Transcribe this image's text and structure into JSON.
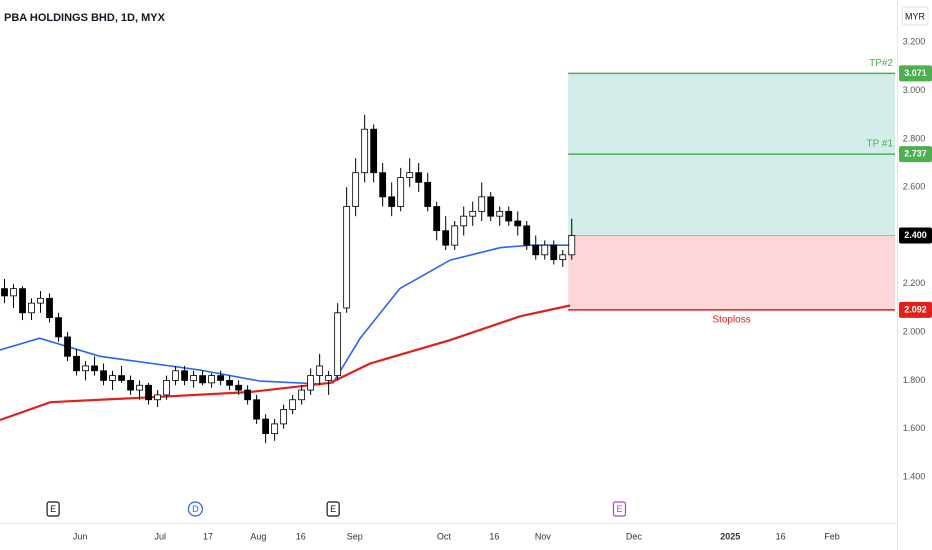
{
  "chart_data": {
    "type": "candlestick",
    "title": "PBA HOLDINGS BHD, 1D, MYX",
    "currency": "MYR",
    "x": [
      0.5,
      1.5,
      2.5,
      3.5,
      4.5,
      5.5,
      6.5,
      7.5,
      8.5,
      9.5,
      10.5,
      11.5,
      12.5,
      13.5,
      14.5,
      15.5,
      16.5,
      17.5,
      18.5,
      19.5,
      20.5,
      21.5,
      22.5,
      23.5,
      24.5,
      25.5,
      26.5,
      27.5,
      28.5,
      29.5,
      30.5,
      31.5,
      32.5,
      33.5,
      34.5,
      35.5,
      36.5,
      37.5,
      38.5,
      39.5,
      40.5,
      41.5,
      42.5,
      43.5,
      44.5,
      45.5,
      46.5,
      47.5,
      48.5,
      49.5,
      50.5,
      51.5,
      52.5,
      53.5,
      54.5,
      55.5,
      56.5,
      57.5,
      58.5,
      59.5,
      60.5,
      61.5,
      62.5,
      63.5
    ],
    "open": [
      2.18,
      2.15,
      2.18,
      2.08,
      2.12,
      2.14,
      2.06,
      1.98,
      1.9,
      1.84,
      1.86,
      1.84,
      1.8,
      1.82,
      1.8,
      1.76,
      1.78,
      1.72,
      1.74,
      1.8,
      1.84,
      1.8,
      1.82,
      1.79,
      1.82,
      1.8,
      1.78,
      1.76,
      1.72,
      1.64,
      1.58,
      1.62,
      1.68,
      1.72,
      1.76,
      1.82,
      1.8,
      1.82,
      2.1,
      2.52,
      2.66,
      2.84,
      2.66,
      2.56,
      2.52,
      2.64,
      2.66,
      2.62,
      2.52,
      2.42,
      2.36,
      2.44,
      2.48,
      2.5,
      2.56,
      2.48,
      2.5,
      2.46,
      2.44,
      2.36,
      2.32,
      2.36,
      2.3,
      2.32
    ],
    "high": [
      2.22,
      2.2,
      2.19,
      2.14,
      2.17,
      2.16,
      2.08,
      2.0,
      1.93,
      1.88,
      1.9,
      1.87,
      1.84,
      1.86,
      1.82,
      1.8,
      1.79,
      1.76,
      1.82,
      1.86,
      1.86,
      1.84,
      1.84,
      1.83,
      1.84,
      1.82,
      1.8,
      1.78,
      1.74,
      1.66,
      1.64,
      1.7,
      1.74,
      1.78,
      1.85,
      1.91,
      1.84,
      2.12,
      2.6,
      2.72,
      2.9,
      2.86,
      2.7,
      2.62,
      2.68,
      2.72,
      2.7,
      2.66,
      2.54,
      2.48,
      2.46,
      2.52,
      2.54,
      2.62,
      2.58,
      2.52,
      2.52,
      2.5,
      2.46,
      2.4,
      2.38,
      2.38,
      2.34,
      2.47
    ],
    "low": [
      2.12,
      2.1,
      2.05,
      2.05,
      2.08,
      2.04,
      1.96,
      1.88,
      1.82,
      1.8,
      1.82,
      1.78,
      1.76,
      1.79,
      1.74,
      1.72,
      1.7,
      1.69,
      1.72,
      1.78,
      1.78,
      1.77,
      1.78,
      1.77,
      1.78,
      1.76,
      1.74,
      1.7,
      1.62,
      1.54,
      1.55,
      1.6,
      1.66,
      1.7,
      1.74,
      1.78,
      1.74,
      1.8,
      2.08,
      2.48,
      2.62,
      2.62,
      2.52,
      2.48,
      2.5,
      2.6,
      2.58,
      2.5,
      2.38,
      2.34,
      2.34,
      2.4,
      2.44,
      2.46,
      2.46,
      2.44,
      2.44,
      2.4,
      2.34,
      2.3,
      2.3,
      2.28,
      2.27,
      2.3
    ],
    "close": [
      2.15,
      2.18,
      2.08,
      2.12,
      2.14,
      2.06,
      1.98,
      1.9,
      1.84,
      1.86,
      1.84,
      1.8,
      1.82,
      1.8,
      1.76,
      1.78,
      1.72,
      1.74,
      1.8,
      1.84,
      1.8,
      1.82,
      1.79,
      1.82,
      1.8,
      1.78,
      1.76,
      1.72,
      1.64,
      1.58,
      1.62,
      1.68,
      1.72,
      1.76,
      1.82,
      1.86,
      1.82,
      2.08,
      2.52,
      2.66,
      2.84,
      2.66,
      2.56,
      2.52,
      2.64,
      2.66,
      2.62,
      2.52,
      2.42,
      2.36,
      2.44,
      2.48,
      2.5,
      2.56,
      2.48,
      2.5,
      2.46,
      2.44,
      2.36,
      2.32,
      2.36,
      2.3,
      2.32,
      2.4
    ],
    "up_color": "#ffffff",
    "down_color": "#000000",
    "series": [
      {
        "color": "#2962ff",
        "x": [
          0,
          4.4,
          11.1,
          22.2,
          28.9,
          35.6,
          37,
          40,
          44.4,
          50,
          55.6,
          58.9,
          63.3
        ],
        "values": [
          1.926,
          1.975,
          1.9,
          1.843,
          1.797,
          1.785,
          1.79,
          1.975,
          2.18,
          2.298,
          2.35,
          2.36,
          2.36
        ]
      },
      {
        "color": "#e0201b",
        "x": [
          0,
          5.6,
          16.7,
          27.8,
          36.7,
          41.1,
          50,
          57.8,
          63.3
        ],
        "values": [
          1.636,
          1.71,
          1.73,
          1.752,
          1.79,
          1.87,
          1.967,
          2.066,
          2.11
        ]
      }
    ],
    "position": {
      "x_start": 63.1,
      "x_end": 99.4,
      "entry": {
        "value": 2.4,
        "label": "2.400"
      },
      "take_profit_1": {
        "value": 2.737,
        "label": "2.737",
        "name": "TP #1"
      },
      "take_profit_2": {
        "value": 3.071,
        "label": "3.071",
        "name": "TP#2"
      },
      "stop_loss": {
        "value": 2.092,
        "label": "2.092",
        "name": "Stoploss"
      },
      "profit_color": "#22ab94",
      "loss_color": "#f23645"
    },
    "events": [
      {
        "label": "E",
        "x": 5.9,
        "color": "#131722"
      },
      {
        "label": "D",
        "x": 21.7,
        "color": "#2962ff"
      },
      {
        "label": "E",
        "x": 37,
        "color": "#131722"
      },
      {
        "label": "E",
        "x": 68.8,
        "color": "#ab47bc"
      }
    ],
    "xlim": [
      0,
      99.4
    ],
    "xticks": [
      {
        "value": 8.9,
        "label": "Jun"
      },
      {
        "value": 17.8,
        "label": "Jul"
      },
      {
        "value": 23.1,
        "label": "17"
      },
      {
        "value": 28.7,
        "label": "Aug"
      },
      {
        "value": 33.4,
        "label": "16"
      },
      {
        "value": 39.4,
        "label": "Sep"
      },
      {
        "value": 49.3,
        "label": "Oct"
      },
      {
        "value": 54.9,
        "label": "16"
      },
      {
        "value": 60.3,
        "label": "Nov"
      },
      {
        "value": 70.4,
        "label": "Dec"
      },
      {
        "value": 81.1,
        "label": "2025"
      },
      {
        "value": 86.7,
        "label": "16"
      },
      {
        "value": 92.4,
        "label": "Feb"
      }
    ],
    "ylim": [
      1.218,
      3.375
    ],
    "yticks": [
      {
        "value": 3.2,
        "label": "3.200"
      },
      {
        "value": 3.0,
        "label": "3.000"
      },
      {
        "value": 2.8,
        "label": "2.800"
      },
      {
        "value": 2.6,
        "label": "2.600"
      },
      {
        "value": 2.2,
        "label": "2.200"
      },
      {
        "value": 2.0,
        "label": "2.000"
      },
      {
        "value": 1.8,
        "label": "1.800"
      },
      {
        "value": 1.6,
        "label": "1.600"
      },
      {
        "value": 1.4,
        "label": "1.400"
      }
    ]
  }
}
